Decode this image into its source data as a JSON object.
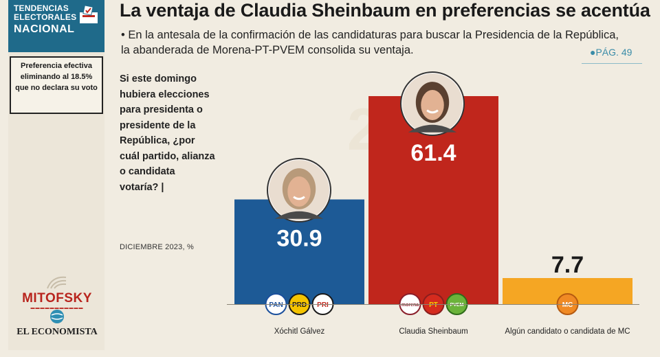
{
  "brand": {
    "line1": "TENDENCIAS",
    "line2": "ELECTORALES",
    "line3": "NACIONAL",
    "color": "#1f6a8a"
  },
  "note": "Preferencia efectiva eliminando al 18.5% que no declara su voto",
  "title": "La ventaja de Claudia Sheinbaum en preferencias se acentúa",
  "subtitle": "• En la antesala de la confirmación de las candidaturas para buscar la Presidencia de la República, la abanderada de Morena-PT-PVEM consolida su ventaja.",
  "page_ref": "PÁG. 49",
  "question": "Si este domingo hubiera elecciones para presidenta o presidente de la República, ¿por cuál partido, alianza o candidata votaría? |",
  "question_date": "DICIEMBRE 2023, %",
  "watermark": "2024",
  "logos": {
    "mitofsky": "MITOFSKY",
    "economista": "EL ECONOMISTA"
  },
  "chart_data": {
    "type": "bar",
    "categories": [
      "Xóchitl Gálvez",
      "Claudia Sheinbaum",
      "Algún candidato o candidata de MC"
    ],
    "values": [
      30.9,
      61.4,
      7.7
    ],
    "colors": [
      "#1d5a96",
      "#c0261c",
      "#f5a623"
    ],
    "party_badges": [
      [
        {
          "label": "PAN",
          "bg": "#ffffff",
          "fg": "#1a4f9c",
          "ring": "#1a4f9c"
        },
        {
          "label": "PRD",
          "bg": "#f5c400",
          "fg": "#1a1a1a",
          "ring": "#1a1a1a"
        },
        {
          "label": "PRI",
          "bg": "#ffffff",
          "fg": "#c0261c",
          "ring": "#1a1a1a"
        }
      ],
      [
        {
          "label": "morena",
          "bg": "#ffffff",
          "fg": "#8a1e2a",
          "ring": "#8a1e2a"
        },
        {
          "label": "PT",
          "bg": "#d52b1e",
          "fg": "#f5d000",
          "ring": "#8a1e1e"
        },
        {
          "label": "PVEM",
          "bg": "#6bb33a",
          "fg": "#ffffff",
          "ring": "#2f6b1a"
        }
      ],
      [
        {
          "label": "MC",
          "bg": "#f08a24",
          "fg": "#ffffff",
          "ring": "#b55a10"
        }
      ]
    ],
    "value_label_colors": [
      "#ffffff",
      "#ffffff",
      "#1a1a1a"
    ],
    "ylim": [
      0,
      70
    ],
    "xlabel": "",
    "ylabel": ""
  }
}
